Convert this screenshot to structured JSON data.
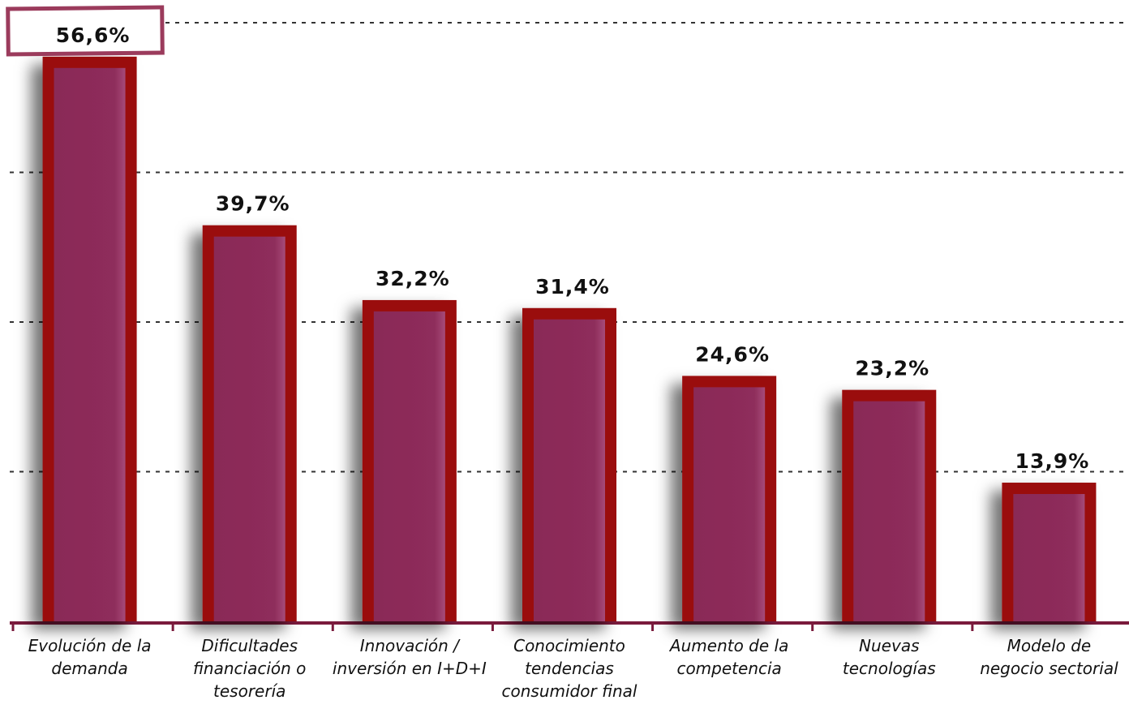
{
  "chart_data": {
    "type": "bar",
    "categories": [
      "Evolución de la\ndemanda",
      "Dificultades\nfinanciación o\ntesorería",
      "Innovación /\ninversión en I+D+I",
      "Conocimiento\ntendencias\nconsumidor final",
      "Aumento de la\ncompetencia",
      "Nuevas\ntecnologías",
      "Modelo de\nnegocio sectorial"
    ],
    "values": [
      56.6,
      39.7,
      32.2,
      31.4,
      24.6,
      23.2,
      13.9
    ],
    "value_labels": [
      "56,6%",
      "39,7%",
      "32,2%",
      "31,4%",
      "24,6%",
      "23,2%",
      "13,9%"
    ],
    "color": "#8e2d5b",
    "border_color": "#9a1010",
    "ylim": [
      0,
      60
    ],
    "yticks": [
      0,
      15,
      30,
      45,
      60
    ],
    "grid": true
  }
}
